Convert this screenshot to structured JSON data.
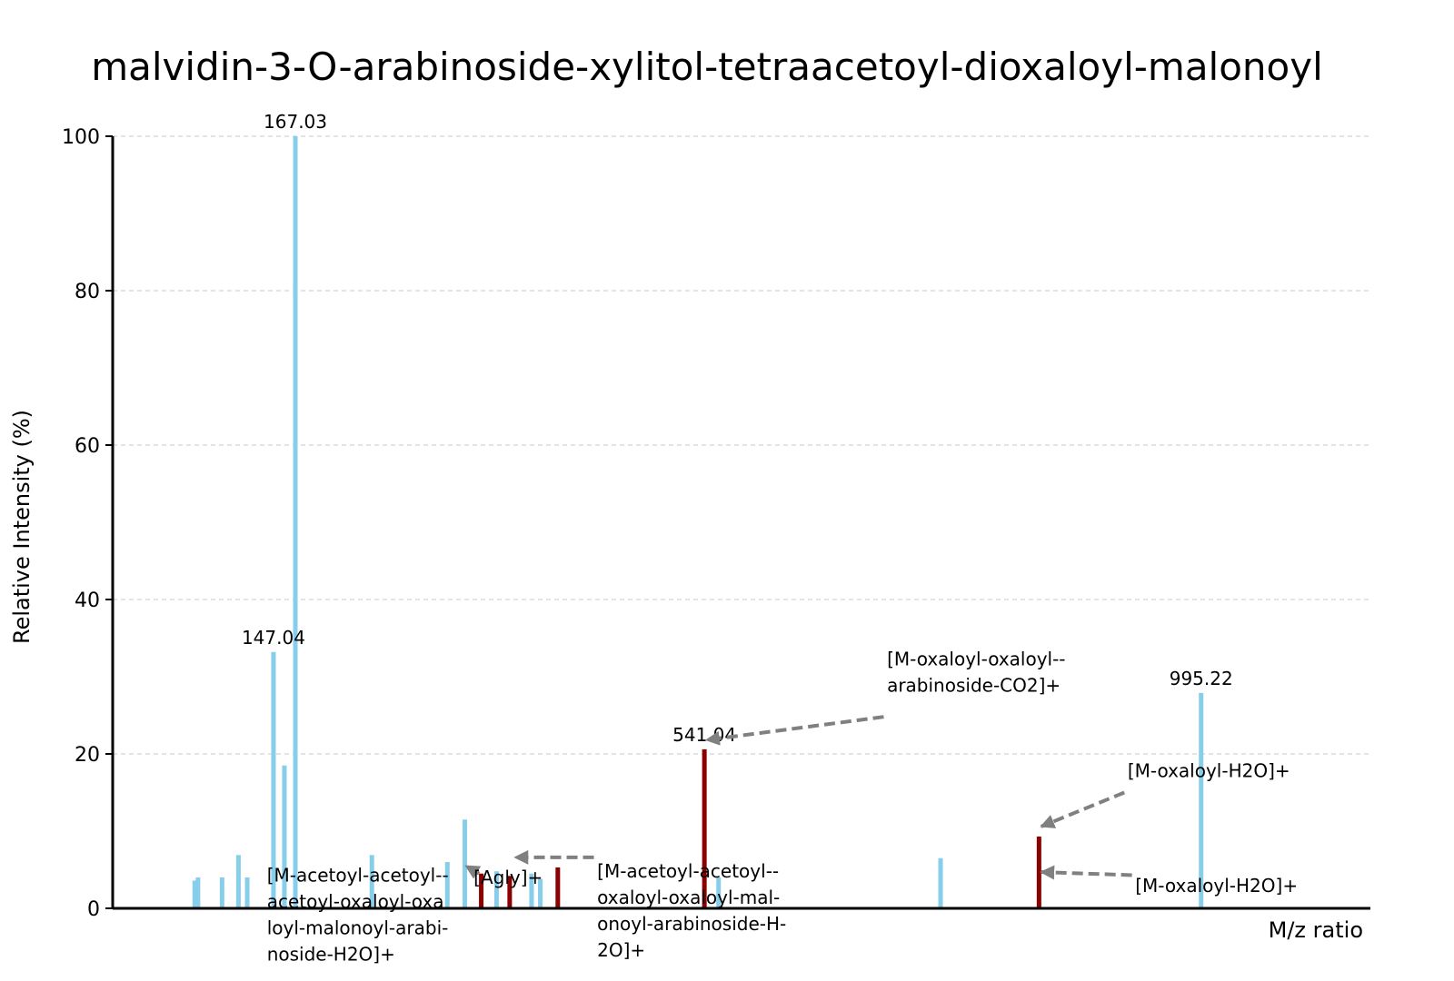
{
  "chart_data": {
    "type": "bar",
    "title": "malvidin-3-O-arabinoside-xylitol-tetraacetoyl-dioxaloyl-malonoyl",
    "xlabel": "M/z ratio",
    "ylabel": "Relative Intensity (%)",
    "xlim": [
      0,
      1150
    ],
    "ylim": [
      0,
      100
    ],
    "yticks": [
      0,
      20,
      40,
      60,
      80,
      100
    ],
    "grid": "horizontal dashed",
    "colors": {
      "unannotated": "#87CEEB",
      "annotated": "#8B0000",
      "arrow": "#808080"
    },
    "peaks": [
      {
        "mz": 75,
        "intensity": 3.6,
        "annotated": false
      },
      {
        "mz": 78,
        "intensity": 4.0,
        "annotated": false
      },
      {
        "mz": 100,
        "intensity": 4.0,
        "annotated": false
      },
      {
        "mz": 115,
        "intensity": 6.9,
        "annotated": false
      },
      {
        "mz": 123,
        "intensity": 4.0,
        "annotated": false
      },
      {
        "mz": 147.04,
        "intensity": 33.2,
        "annotated": false,
        "label": "147.04"
      },
      {
        "mz": 157,
        "intensity": 18.5,
        "annotated": false
      },
      {
        "mz": 167.03,
        "intensity": 100,
        "annotated": false,
        "label": "167.03"
      },
      {
        "mz": 237,
        "intensity": 6.9,
        "annotated": false
      },
      {
        "mz": 306,
        "intensity": 6.0,
        "annotated": false
      },
      {
        "mz": 322,
        "intensity": 11.5,
        "annotated": false
      },
      {
        "mz": 337,
        "intensity": 4.5,
        "annotated": true
      },
      {
        "mz": 351,
        "intensity": 4.8,
        "annotated": false
      },
      {
        "mz": 363,
        "intensity": 4.2,
        "annotated": true
      },
      {
        "mz": 383,
        "intensity": 4.5,
        "annotated": false
      },
      {
        "mz": 391,
        "intensity": 3.8,
        "annotated": false
      },
      {
        "mz": 407,
        "intensity": 5.3,
        "annotated": true
      },
      {
        "mz": 541.04,
        "intensity": 20.6,
        "annotated": true,
        "label": "541.04"
      },
      {
        "mz": 554,
        "intensity": 4.0,
        "annotated": false
      },
      {
        "mz": 757,
        "intensity": 6.5,
        "annotated": false
      },
      {
        "mz": 847,
        "intensity": 9.3,
        "annotated": true
      },
      {
        "mz": 995.22,
        "intensity": 27.9,
        "annotated": false,
        "label": "995.22"
      }
    ],
    "annotations": [
      {
        "lines": [
          "[M-acetoyl-acetoyl--",
          "acetoyl-oxaloyl-oxa",
          "loyl-malonoyl-arabi-",
          "noside-H2O]+"
        ],
        "text_mz": 141,
        "text_y": 3.5,
        "arrow_from": [
          335,
          4.5
        ],
        "arrow_to": [
          323,
          5.5
        ]
      },
      {
        "lines": [
          "[Agly]+"
        ],
        "text_mz": 330,
        "text_y": 3.2,
        "arrow_from": null,
        "arrow_to": null
      },
      {
        "lines": [
          "[M-acetoyl-acetoyl--",
          "oxaloyl-oxaloyl-mal-",
          "onoyl-arabinoside-H-",
          "2O]+"
        ],
        "text_mz": 443,
        "text_y": 4.0,
        "arrow_from": [
          440,
          6.6
        ],
        "arrow_to": [
          368,
          6.6
        ]
      },
      {
        "lines": [
          "[M-oxaloyl-oxaloyl--",
          "arabinoside-CO2]+"
        ],
        "text_mz": 708,
        "text_y": 31.5,
        "arrow_from": [
          705,
          24.8
        ],
        "arrow_to": [
          543,
          21.8
        ]
      },
      {
        "lines": [
          "[M-oxaloyl-H2O]+"
        ],
        "text_mz": 928,
        "text_y": 17.0,
        "arrow_from": [
          925,
          15.0
        ],
        "arrow_to": [
          849,
          10.6
        ]
      },
      {
        "lines": [
          "[M-oxaloyl-H2O]+"
        ],
        "text_mz": 935,
        "text_y": 2.1,
        "arrow_from": [
          932,
          4.3
        ],
        "arrow_to": [
          849,
          4.7
        ]
      }
    ]
  }
}
